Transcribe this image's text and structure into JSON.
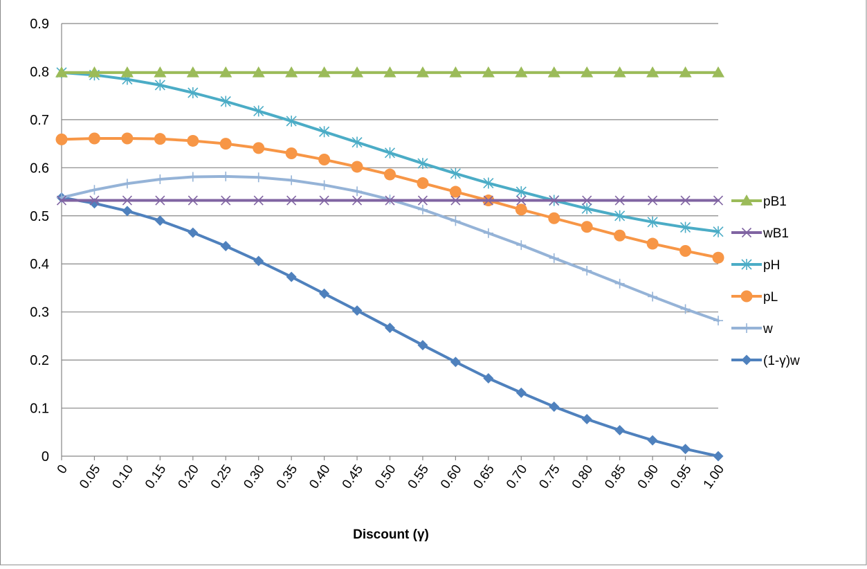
{
  "chart_data": {
    "type": "line",
    "title": "",
    "xlabel": "Discount (γ)",
    "ylabel": "",
    "ylim": [
      0,
      0.9
    ],
    "yticks": [
      "0",
      "0.1",
      "0.2",
      "0.3",
      "0.4",
      "0.5",
      "0.6",
      "0.7",
      "0.8",
      "0.9"
    ],
    "categories": [
      "0",
      "0.05",
      "0.10",
      "0.15",
      "0.20",
      "0.25",
      "0.30",
      "0.35",
      "0.40",
      "0.45",
      "0.50",
      "0.55",
      "0.60",
      "0.65",
      "0.70",
      "0.75",
      "0.80",
      "0.85",
      "0.90",
      "0.95",
      "1.00"
    ],
    "grid": "horizontal",
    "legend_position": "right",
    "series": [
      {
        "name": "pB1",
        "color": "#9BBB59",
        "marker": "triangle",
        "values": [
          0.798,
          0.798,
          0.798,
          0.798,
          0.798,
          0.798,
          0.798,
          0.798,
          0.798,
          0.798,
          0.798,
          0.798,
          0.798,
          0.798,
          0.798,
          0.798,
          0.798,
          0.798,
          0.798,
          0.798,
          0.798
        ]
      },
      {
        "name": "wB1",
        "color": "#8064A2",
        "marker": "x",
        "values": [
          0.532,
          0.532,
          0.532,
          0.532,
          0.532,
          0.532,
          0.532,
          0.532,
          0.532,
          0.532,
          0.532,
          0.532,
          0.532,
          0.532,
          0.532,
          0.532,
          0.532,
          0.532,
          0.532,
          0.532,
          0.532
        ]
      },
      {
        "name": "pH",
        "color": "#4BACC6",
        "marker": "asterisk",
        "values": [
          0.798,
          0.793,
          0.784,
          0.772,
          0.756,
          0.738,
          0.718,
          0.697,
          0.675,
          0.653,
          0.631,
          0.609,
          0.588,
          0.568,
          0.55,
          0.532,
          0.515,
          0.5,
          0.487,
          0.476,
          0.467
        ]
      },
      {
        "name": "pL",
        "color": "#F79646",
        "marker": "circle",
        "values": [
          0.659,
          0.661,
          0.661,
          0.66,
          0.656,
          0.65,
          0.641,
          0.63,
          0.617,
          0.602,
          0.586,
          0.568,
          0.55,
          0.532,
          0.513,
          0.495,
          0.477,
          0.459,
          0.442,
          0.427,
          0.413
        ]
      },
      {
        "name": "w",
        "color": "#95B3D7",
        "marker": "plus",
        "values": [
          0.538,
          0.554,
          0.567,
          0.576,
          0.581,
          0.582,
          0.58,
          0.574,
          0.564,
          0.551,
          0.534,
          0.513,
          0.489,
          0.464,
          0.439,
          0.412,
          0.386,
          0.359,
          0.332,
          0.306,
          0.282
        ]
      },
      {
        "name": "(1-γ)w",
        "color": "#4F81BD",
        "marker": "diamond",
        "values": [
          0.538,
          0.526,
          0.51,
          0.49,
          0.465,
          0.437,
          0.406,
          0.373,
          0.338,
          0.303,
          0.267,
          0.231,
          0.196,
          0.162,
          0.132,
          0.103,
          0.077,
          0.054,
          0.033,
          0.015,
          0.0
        ]
      }
    ]
  }
}
